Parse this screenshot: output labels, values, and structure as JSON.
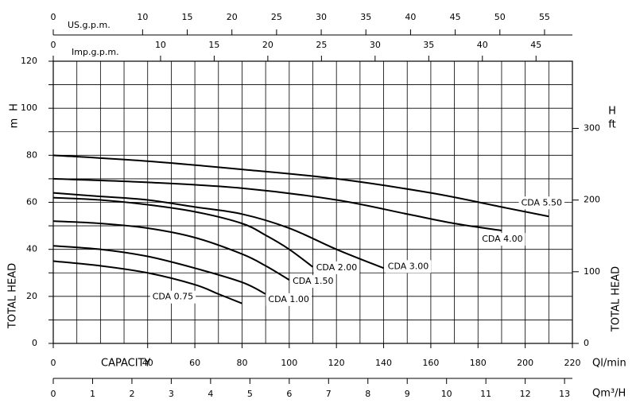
{
  "chart_data": {
    "type": "line",
    "x_label": "CAPACITY",
    "x_unit": "Ql/min",
    "y_label": "TOTAL HEAD",
    "y_symbol": "H",
    "y_unit": "m",
    "xlim": [
      0,
      220
    ],
    "xticks": [
      0,
      40,
      60,
      80,
      100,
      120,
      140,
      160,
      180,
      200,
      220
    ],
    "xgrid": [
      0,
      10,
      20,
      30,
      40,
      50,
      60,
      70,
      80,
      90,
      100,
      110,
      120,
      130,
      140,
      150,
      160,
      170,
      180,
      190,
      200,
      210,
      220
    ],
    "ylim": [
      0,
      120
    ],
    "yticks": [
      0,
      20,
      40,
      60,
      80,
      100,
      120
    ],
    "ygrid": [
      0,
      10,
      20,
      30,
      40,
      50,
      60,
      70,
      80,
      90,
      100,
      110,
      120
    ],
    "y2_label": "TOTAL HEAD",
    "y2_symbol": "H",
    "y2_unit": "ft",
    "y2lim": [
      0,
      393.7
    ],
    "y2ticks": [
      0,
      100,
      200,
      300
    ],
    "top_axes": [
      {
        "label": "US.g.p.m.",
        "lim": [
          0,
          58.12
        ],
        "ticks": [
          0,
          10,
          15,
          20,
          25,
          30,
          35,
          40,
          45,
          50,
          55
        ]
      },
      {
        "label": "Imp.g.p.m.",
        "lim": [
          0,
          48.39
        ],
        "ticks": [
          0,
          10,
          15,
          20,
          25,
          30,
          35,
          40,
          45
        ]
      }
    ],
    "bottom_axis": {
      "label": "Qm³/H",
      "lim": [
        0,
        13.2
      ],
      "ticks": [
        0,
        1,
        2,
        3,
        4,
        5,
        6,
        7,
        8,
        9,
        10,
        11,
        12,
        13
      ]
    },
    "series": [
      {
        "name": "CDA 0.75",
        "color": "#000000",
        "x": [
          0,
          20,
          40,
          60,
          70,
          80
        ],
        "values": [
          35,
          33,
          30,
          25,
          21,
          17
        ]
      },
      {
        "name": "CDA 1.00",
        "color": "#000000",
        "x": [
          0,
          20,
          40,
          60,
          80,
          90
        ],
        "values": [
          41.5,
          40,
          37,
          32,
          26,
          21
        ]
      },
      {
        "name": "CDA 1.50",
        "color": "#000000",
        "x": [
          0,
          20,
          40,
          60,
          80,
          90,
          100
        ],
        "values": [
          52,
          51,
          49,
          45,
          38,
          33,
          27
        ]
      },
      {
        "name": "CDA 2.00",
        "color": "#000000",
        "x": [
          0,
          20,
          40,
          60,
          80,
          90,
          100,
          110
        ],
        "values": [
          62,
          61,
          59,
          56,
          51,
          46,
          40,
          32.5
        ]
      },
      {
        "name": "CDA 3.00",
        "color": "#000000",
        "x": [
          0,
          20,
          40,
          60,
          80,
          100,
          120,
          140
        ],
        "values": [
          64,
          62.5,
          61,
          58,
          55,
          49,
          40,
          32
        ]
      },
      {
        "name": "CDA 4.00",
        "color": "#000000",
        "x": [
          0,
          40,
          80,
          120,
          150,
          170,
          190
        ],
        "values": [
          70,
          68.5,
          66,
          61,
          55,
          51,
          48
        ]
      },
      {
        "name": "CDA 5.50",
        "color": "#000000",
        "x": [
          0,
          40,
          80,
          120,
          160,
          190,
          210
        ],
        "values": [
          80,
          77.5,
          74,
          70,
          64,
          58,
          54
        ]
      }
    ]
  }
}
